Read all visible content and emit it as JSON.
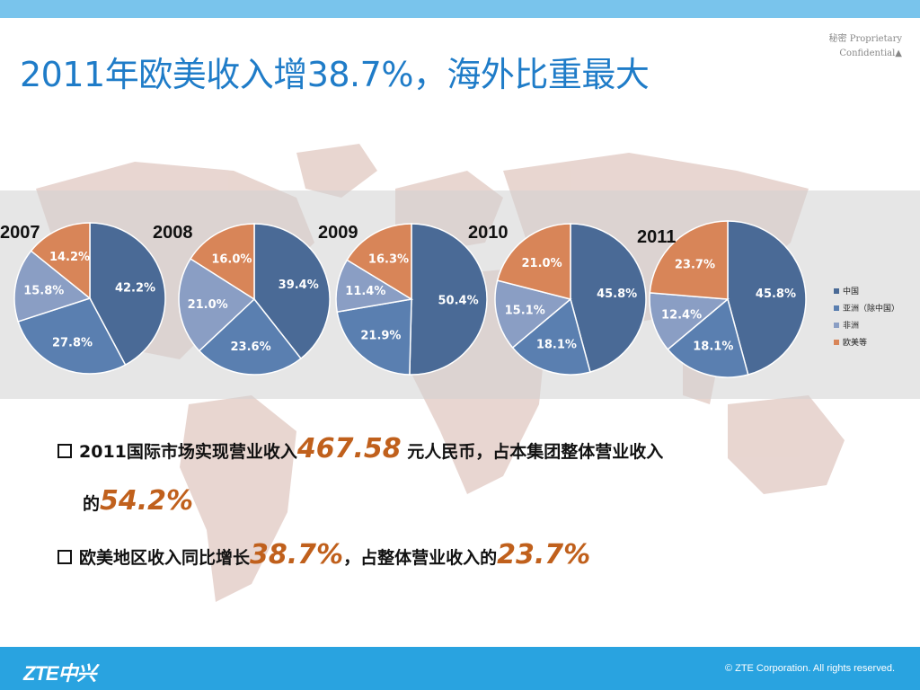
{
  "header": {
    "title": "2011年欧美收入增38.7%，海外比重最大",
    "confidential_line1": "秘密  Proprietary",
    "confidential_line2": "Confidential▲"
  },
  "chart_data": {
    "type": "pie",
    "legend": [
      "中国",
      "亚洲（除中国）",
      "非洲",
      "欧美等"
    ],
    "legend_placement": "right",
    "colors": [
      "#4a6a96",
      "#5a7fb0",
      "#8a9ec4",
      "#d88558"
    ],
    "pies": [
      {
        "year": "2007",
        "values": [
          42.2,
          27.8,
          15.8,
          14.2
        ],
        "labels": [
          "42.2%",
          "27.8%",
          "15.8%",
          "14.2%"
        ]
      },
      {
        "year": "2008",
        "values": [
          39.4,
          23.6,
          21.0,
          16.0
        ],
        "labels": [
          "39.4%",
          "23.6%",
          "21.0%",
          "16.0%"
        ]
      },
      {
        "year": "2009",
        "values": [
          50.4,
          21.9,
          11.4,
          16.3
        ],
        "labels": [
          "50.4%",
          "21.9%",
          "11.4%",
          "16.3%"
        ]
      },
      {
        "year": "2010",
        "values": [
          45.8,
          18.1,
          15.1,
          21.0
        ],
        "labels": [
          "45.8%",
          "18.1%",
          "15.1%",
          "21.0%"
        ]
      },
      {
        "year": "2011",
        "values": [
          45.8,
          18.1,
          12.4,
          23.7
        ],
        "labels": [
          "45.8%",
          "18.1%",
          "12.4%",
          "23.7%"
        ]
      }
    ]
  },
  "bullets": {
    "b1_prefix": "2011国际市场实现营业收入",
    "b1_value": "467.58",
    "b1_middle": "  元人民币，占本集团整体营业收入",
    "b1_line2_prefix": "的",
    "b1_line2_value": "54.2%",
    "b2_prefix": "欧美地区收入同比增长",
    "b2_value1": "38.7%",
    "b2_middle": "，占整体营业收入的",
    "b2_value2": "23.7%"
  },
  "footer": {
    "logo_text": "ZTE中兴",
    "copyright": "© ZTE Corporation. All rights reserved."
  }
}
